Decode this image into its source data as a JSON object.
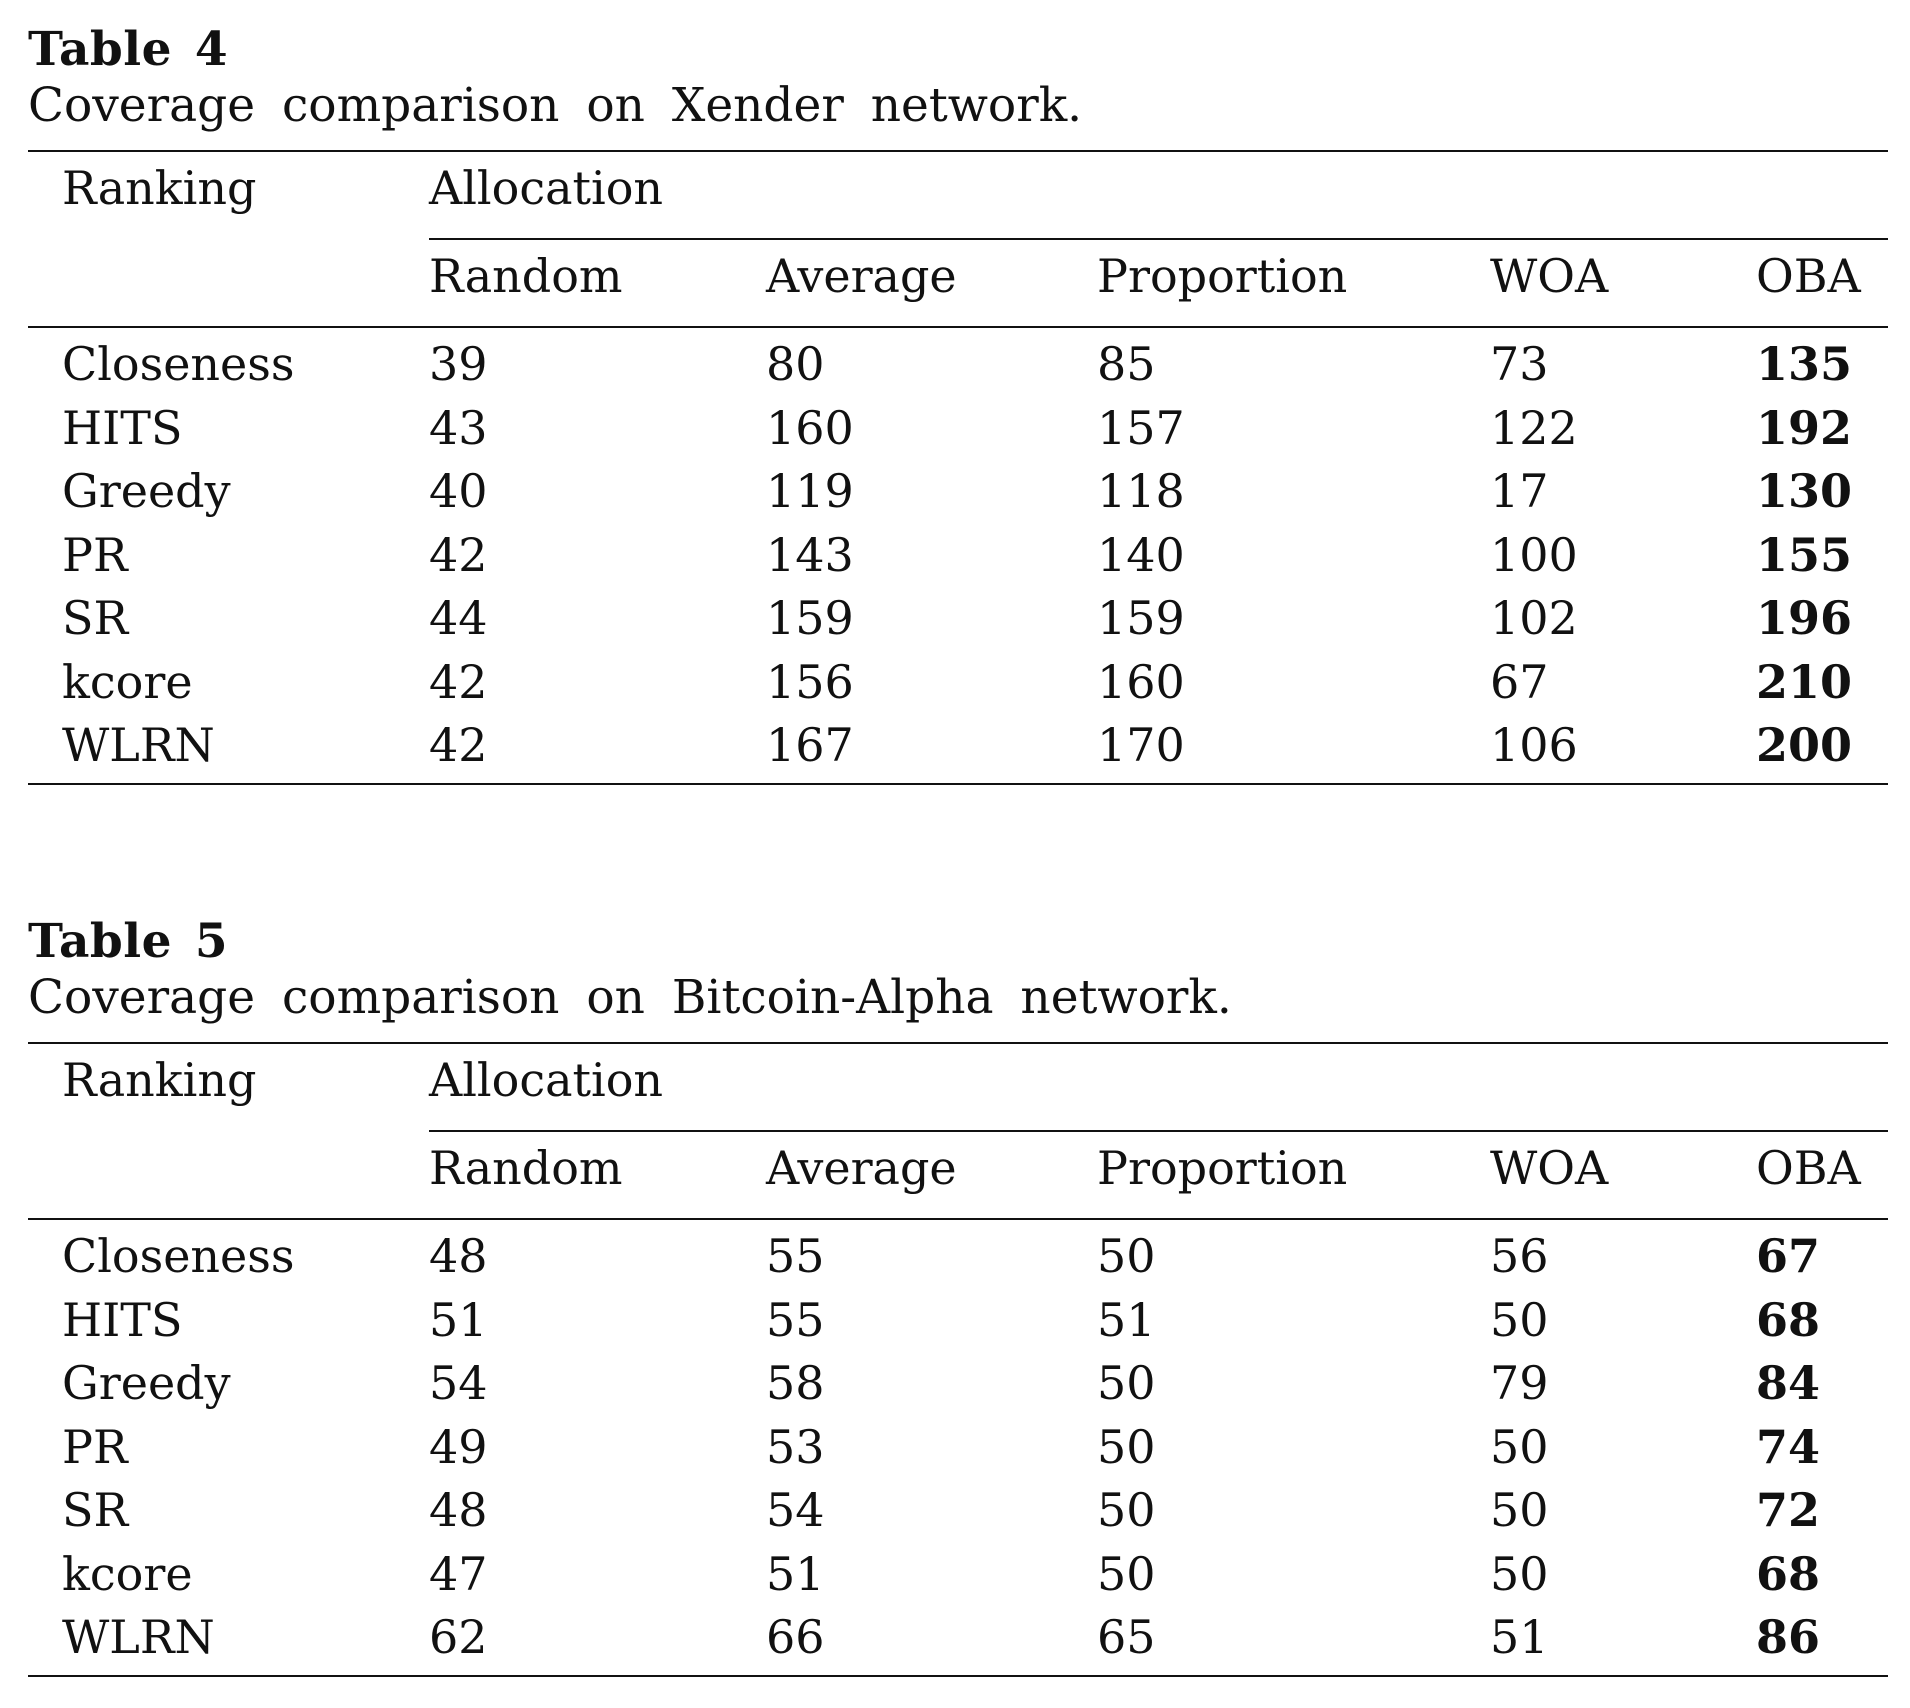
{
  "tables": [
    {
      "label": "Table 4",
      "caption": "Coverage comparison on Xender network.",
      "row_header": "Ranking",
      "group_header": "Allocation",
      "columns": [
        "Random",
        "Average",
        "Proportion",
        "WOA",
        "OBA"
      ],
      "rows": [
        {
          "name": "Closeness",
          "values": [
            "39",
            "80",
            "85",
            "73",
            "135"
          ]
        },
        {
          "name": "HITS",
          "values": [
            "43",
            "160",
            "157",
            "122",
            "192"
          ]
        },
        {
          "name": "Greedy",
          "values": [
            "40",
            "119",
            "118",
            "17",
            "130"
          ]
        },
        {
          "name": "PR",
          "values": [
            "42",
            "143",
            "140",
            "100",
            "155"
          ]
        },
        {
          "name": "SR",
          "values": [
            "44",
            "159",
            "159",
            "102",
            "196"
          ]
        },
        {
          "name": "kcore",
          "values": [
            "42",
            "156",
            "160",
            "67",
            "210"
          ]
        },
        {
          "name": "WLRN",
          "values": [
            "42",
            "167",
            "170",
            "106",
            "200"
          ]
        }
      ],
      "bold_column": "OBA"
    },
    {
      "label": "Table 5",
      "caption": "Coverage comparison on Bitcoin-Alpha network.",
      "row_header": "Ranking",
      "group_header": "Allocation",
      "columns": [
        "Random",
        "Average",
        "Proportion",
        "WOA",
        "OBA"
      ],
      "rows": [
        {
          "name": "Closeness",
          "values": [
            "48",
            "55",
            "50",
            "56",
            "67"
          ]
        },
        {
          "name": "HITS",
          "values": [
            "51",
            "55",
            "51",
            "50",
            "68"
          ]
        },
        {
          "name": "Greedy",
          "values": [
            "54",
            "58",
            "50",
            "79",
            "84"
          ]
        },
        {
          "name": "PR",
          "values": [
            "49",
            "53",
            "50",
            "50",
            "74"
          ]
        },
        {
          "name": "SR",
          "values": [
            "48",
            "54",
            "50",
            "50",
            "72"
          ]
        },
        {
          "name": "kcore",
          "values": [
            "47",
            "51",
            "50",
            "50",
            "68"
          ]
        },
        {
          "name": "WLRN",
          "values": [
            "62",
            "66",
            "65",
            "51",
            "86"
          ]
        }
      ],
      "bold_column": "OBA"
    }
  ]
}
